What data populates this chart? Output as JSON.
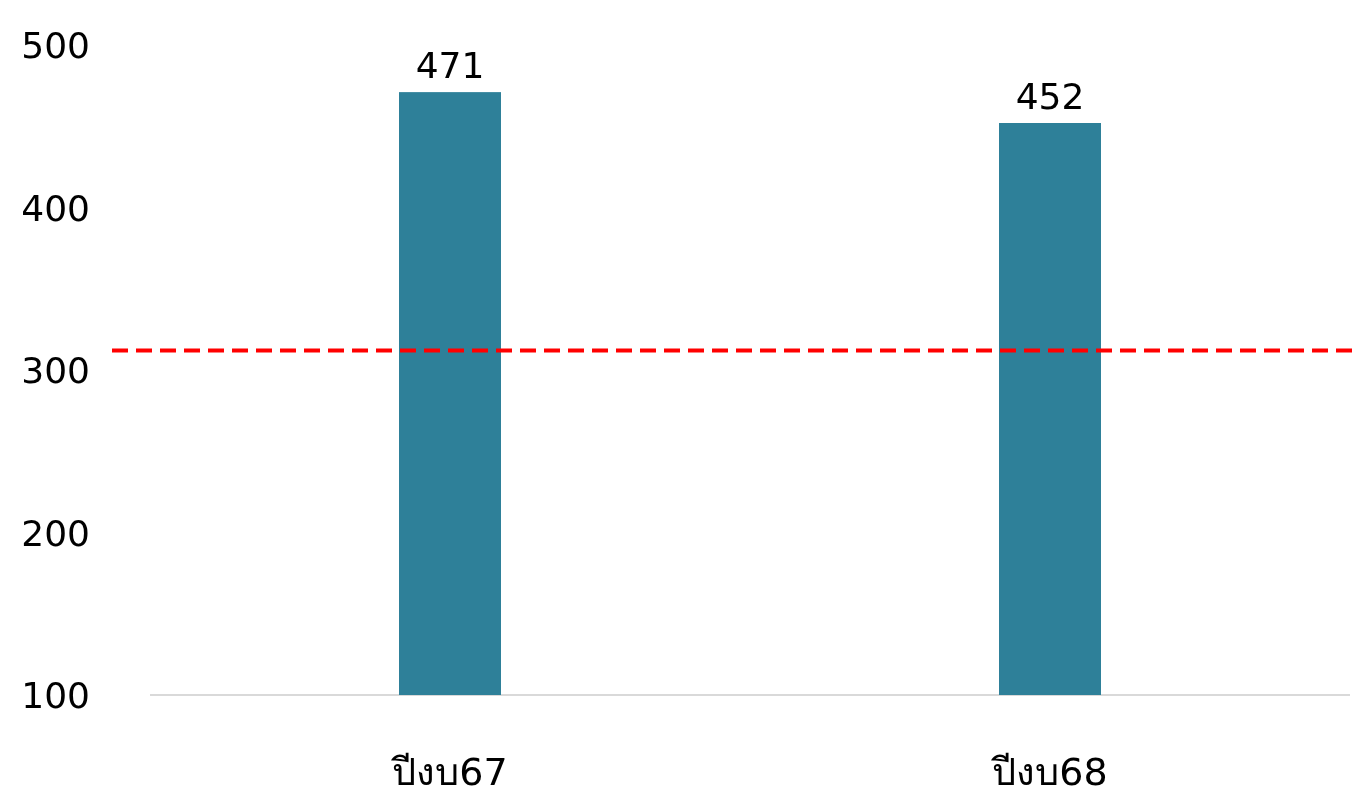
{
  "chart_data": {
    "type": "bar",
    "categories": [
      "ปีงบ67",
      "ปีงบ68"
    ],
    "values": [
      471,
      452
    ],
    "color": "#2e8099",
    "ylim": [
      100,
      500
    ],
    "yticks": [
      100,
      200,
      300,
      400,
      500
    ],
    "data_labels": true,
    "grid": false,
    "ref_lines": [
      {
        "axis": "y",
        "value": 312,
        "color": "#ff0000",
        "line_style": "dashed"
      }
    ]
  }
}
